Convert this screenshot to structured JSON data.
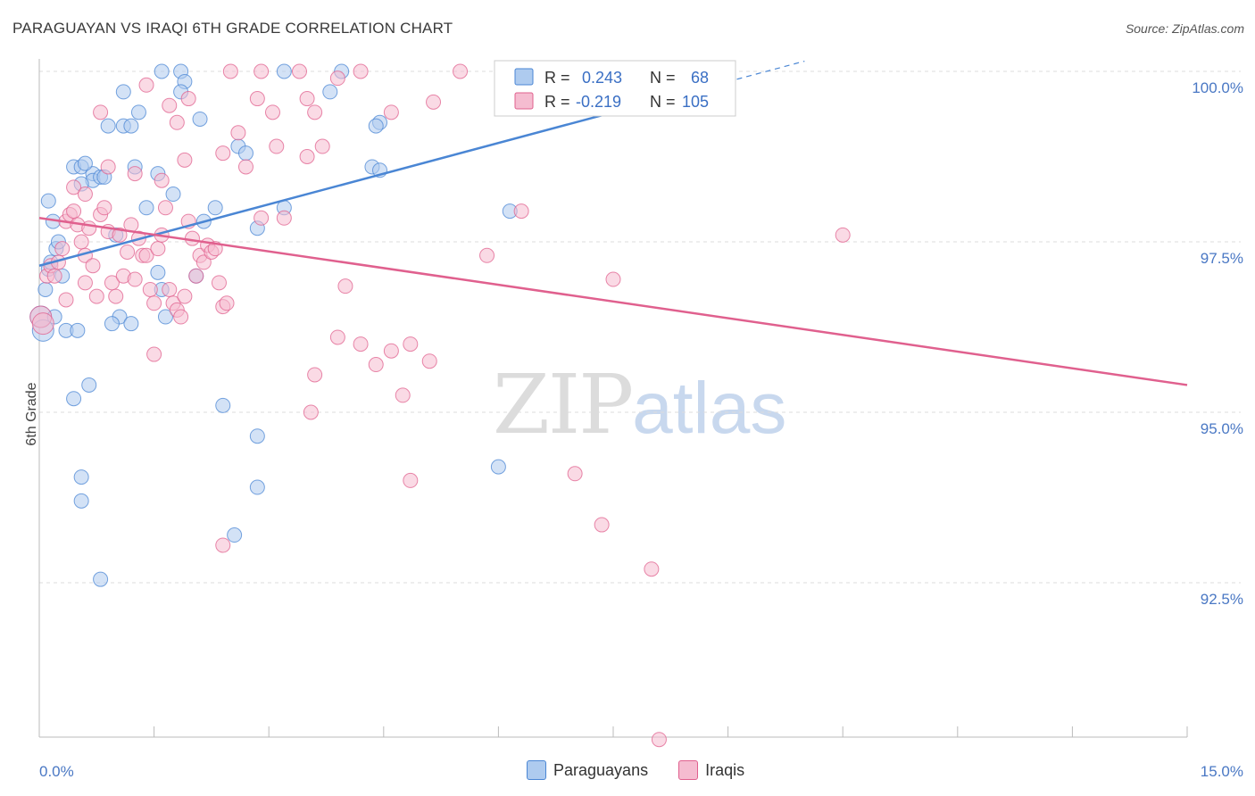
{
  "header": {
    "title": "PARAGUAYAN VS IRAQI 6TH GRADE CORRELATION CHART",
    "source": "Source: ZipAtlas.com"
  },
  "watermark": {
    "zip": "ZIP",
    "atlas": "atlas"
  },
  "colors": {
    "blue": "#4a86d4",
    "blue_fill": "#aecbef",
    "pink": "#e0608e",
    "pink_fill": "#f5bcd0",
    "tick_text": "#4a78c4"
  },
  "legend": {
    "rows": [
      {
        "r_label": "R = ",
        "r_value": "0.243",
        "n_label": "N = ",
        "n_value": "68"
      },
      {
        "r_label": "R = ",
        "r_value": "-0.219",
        "n_label": "N = ",
        "n_value": "105"
      }
    ],
    "bottom": [
      "Paraguayans",
      "Iraqis"
    ]
  },
  "chart_data": {
    "type": "scatter",
    "title": "PARAGUAYAN VS IRAQI 6TH GRADE CORRELATION CHART",
    "xlabel": "",
    "ylabel": "6th Grade",
    "xlim": [
      0,
      15
    ],
    "ylim": [
      90.0,
      100.3
    ],
    "y_ticks": [
      {
        "value": 100.0,
        "label": "100.0%"
      },
      {
        "value": 97.5,
        "label": "97.5%"
      },
      {
        "value": 95.0,
        "label": "95.0%"
      },
      {
        "value": 92.5,
        "label": "92.5%"
      }
    ],
    "x_tick_labels": {
      "min": "0.0%",
      "max": "15.0%"
    },
    "grid": "horizontal dashed",
    "series": [
      {
        "name": "Paraguayans",
        "color": "#4a86d4",
        "trend": {
          "x1": 0.0,
          "y1": 97.15,
          "x2": 8.0,
          "y2": 99.55,
          "dashed_to_x": 10.0
        },
        "points": [
          [
            0.02,
            96.4
          ],
          [
            0.05,
            96.2
          ],
          [
            0.08,
            96.8
          ],
          [
            0.12,
            97.1
          ],
          [
            0.15,
            97.2
          ],
          [
            0.18,
            97.8
          ],
          [
            0.12,
            98.1
          ],
          [
            0.22,
            97.4
          ],
          [
            0.25,
            97.5
          ],
          [
            0.3,
            97.0
          ],
          [
            0.2,
            96.4
          ],
          [
            0.35,
            96.2
          ],
          [
            0.5,
            96.2
          ],
          [
            0.45,
            98.6
          ],
          [
            0.55,
            98.6
          ],
          [
            0.7,
            98.5
          ],
          [
            0.7,
            98.4
          ],
          [
            0.55,
            98.35
          ],
          [
            0.8,
            98.45
          ],
          [
            0.85,
            98.45
          ],
          [
            0.6,
            98.65
          ],
          [
            0.9,
            99.2
          ],
          [
            1.1,
            99.2
          ],
          [
            1.2,
            99.2
          ],
          [
            1.3,
            99.4
          ],
          [
            1.1,
            99.7
          ],
          [
            1.6,
            100.0
          ],
          [
            1.85,
            100.0
          ],
          [
            1.9,
            99.85
          ],
          [
            2.1,
            99.3
          ],
          [
            1.85,
            99.7
          ],
          [
            1.55,
            98.5
          ],
          [
            1.25,
            98.6
          ],
          [
            1.75,
            98.2
          ],
          [
            1.4,
            98.0
          ],
          [
            2.3,
            98.0
          ],
          [
            2.6,
            98.9
          ],
          [
            2.7,
            98.8
          ],
          [
            2.85,
            97.7
          ],
          [
            2.15,
            97.8
          ],
          [
            3.2,
            100.0
          ],
          [
            3.2,
            98.0
          ],
          [
            3.8,
            99.7
          ],
          [
            3.95,
            100.0
          ],
          [
            4.45,
            99.25
          ],
          [
            4.4,
            99.2
          ],
          [
            4.35,
            98.6
          ],
          [
            4.45,
            98.55
          ],
          [
            1.0,
            97.6
          ],
          [
            1.55,
            97.05
          ],
          [
            2.05,
            97.0
          ],
          [
            1.6,
            96.8
          ],
          [
            1.65,
            96.4
          ],
          [
            1.05,
            96.4
          ],
          [
            0.95,
            96.3
          ],
          [
            1.2,
            96.3
          ],
          [
            0.65,
            95.4
          ],
          [
            0.45,
            95.2
          ],
          [
            2.4,
            95.1
          ],
          [
            2.85,
            94.65
          ],
          [
            0.55,
            94.05
          ],
          [
            0.55,
            93.7
          ],
          [
            2.85,
            93.9
          ],
          [
            2.55,
            93.2
          ],
          [
            0.8,
            92.55
          ],
          [
            6.0,
            94.2
          ],
          [
            6.15,
            97.95
          ],
          [
            6.35,
            100.0
          ]
        ]
      },
      {
        "name": "Iraqis",
        "color": "#e0608e",
        "trend": {
          "x1": 0.0,
          "y1": 97.85,
          "x2": 15.0,
          "y2": 95.4
        },
        "points": [
          [
            0.02,
            96.4
          ],
          [
            0.05,
            96.3
          ],
          [
            0.1,
            97.0
          ],
          [
            0.15,
            97.15
          ],
          [
            0.2,
            97.0
          ],
          [
            0.25,
            97.2
          ],
          [
            0.3,
            97.4
          ],
          [
            0.35,
            97.8
          ],
          [
            0.4,
            97.9
          ],
          [
            0.45,
            97.95
          ],
          [
            0.5,
            97.75
          ],
          [
            0.55,
            97.5
          ],
          [
            0.6,
            97.3
          ],
          [
            0.65,
            97.7
          ],
          [
            0.7,
            97.15
          ],
          [
            0.75,
            96.7
          ],
          [
            0.8,
            97.9
          ],
          [
            0.85,
            98.0
          ],
          [
            0.9,
            97.65
          ],
          [
            0.95,
            96.9
          ],
          [
            1.0,
            96.7
          ],
          [
            1.05,
            97.6
          ],
          [
            1.1,
            97.0
          ],
          [
            1.15,
            97.35
          ],
          [
            1.2,
            97.75
          ],
          [
            1.25,
            96.95
          ],
          [
            1.3,
            97.55
          ],
          [
            1.35,
            97.3
          ],
          [
            1.4,
            97.3
          ],
          [
            1.45,
            96.8
          ],
          [
            1.5,
            96.6
          ],
          [
            1.55,
            97.4
          ],
          [
            1.6,
            97.6
          ],
          [
            1.65,
            98.0
          ],
          [
            1.7,
            96.8
          ],
          [
            1.75,
            96.6
          ],
          [
            1.8,
            96.5
          ],
          [
            1.85,
            96.4
          ],
          [
            1.9,
            96.7
          ],
          [
            1.95,
            97.8
          ],
          [
            2.0,
            97.55
          ],
          [
            2.05,
            97.0
          ],
          [
            2.1,
            97.3
          ],
          [
            2.15,
            97.2
          ],
          [
            2.2,
            97.45
          ],
          [
            2.25,
            97.35
          ],
          [
            2.3,
            97.4
          ],
          [
            2.35,
            96.9
          ],
          [
            2.4,
            96.55
          ],
          [
            2.45,
            96.6
          ],
          [
            0.45,
            98.3
          ],
          [
            0.6,
            98.2
          ],
          [
            0.9,
            98.6
          ],
          [
            1.25,
            98.5
          ],
          [
            1.6,
            98.4
          ],
          [
            1.9,
            98.7
          ],
          [
            2.4,
            98.8
          ],
          [
            2.6,
            99.1
          ],
          [
            2.7,
            98.6
          ],
          [
            2.85,
            99.6
          ],
          [
            3.1,
            98.9
          ],
          [
            3.5,
            98.75
          ],
          [
            3.7,
            98.9
          ],
          [
            3.9,
            99.9
          ],
          [
            3.6,
            99.4
          ],
          [
            3.5,
            99.6
          ],
          [
            2.5,
            100.0
          ],
          [
            2.9,
            100.0
          ],
          [
            3.4,
            100.0
          ],
          [
            4.2,
            100.0
          ],
          [
            4.6,
            99.4
          ],
          [
            5.15,
            99.55
          ],
          [
            5.5,
            100.0
          ],
          [
            6.3,
            100.0
          ],
          [
            0.8,
            99.4
          ],
          [
            1.4,
            99.8
          ],
          [
            1.7,
            99.5
          ],
          [
            1.8,
            99.25
          ],
          [
            1.95,
            99.6
          ],
          [
            3.05,
            99.4
          ],
          [
            2.9,
            97.85
          ],
          [
            3.2,
            97.85
          ],
          [
            4.0,
            96.85
          ],
          [
            3.9,
            96.1
          ],
          [
            4.2,
            96.0
          ],
          [
            4.4,
            95.7
          ],
          [
            4.6,
            95.9
          ],
          [
            4.85,
            96.0
          ],
          [
            5.1,
            95.75
          ],
          [
            3.6,
            95.55
          ],
          [
            3.55,
            95.0
          ],
          [
            4.75,
            95.25
          ],
          [
            4.85,
            94.0
          ],
          [
            5.85,
            97.3
          ],
          [
            6.3,
            97.95
          ],
          [
            7.5,
            96.95
          ],
          [
            7.0,
            94.1
          ],
          [
            7.35,
            93.35
          ],
          [
            8.0,
            92.7
          ],
          [
            10.5,
            97.6
          ],
          [
            2.4,
            93.05
          ],
          [
            8.1,
            90.2
          ],
          [
            1.5,
            95.85
          ],
          [
            0.35,
            96.65
          ],
          [
            0.6,
            96.9
          ]
        ]
      }
    ]
  }
}
